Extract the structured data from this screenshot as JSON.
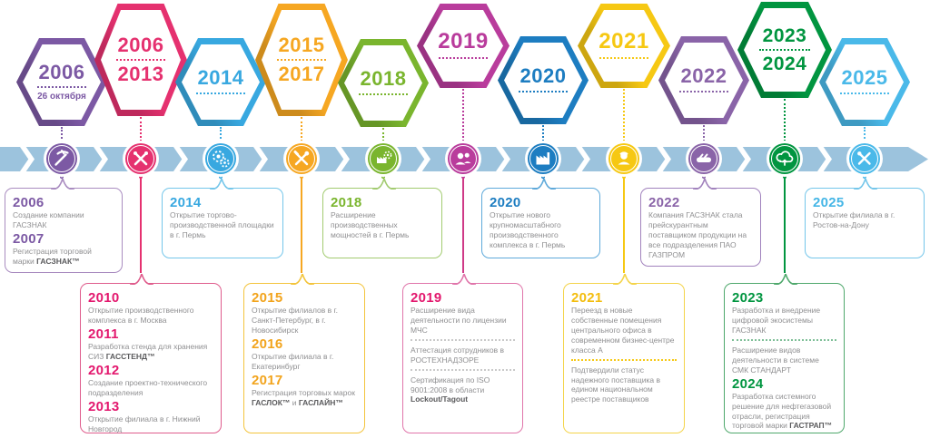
{
  "timeline": {
    "band_color": "#9cc3dd",
    "sections": [
      {
        "years": [
          "2006"
        ],
        "subtitle": "26 октября",
        "color": "#7c59a4",
        "icon": "hammer-pick-icon"
      },
      {
        "years": [
          "2006",
          "2013"
        ],
        "color": "#e5316f",
        "icon": "crossed-tools-icon"
      },
      {
        "years": [
          "2014"
        ],
        "color": "#38a8e0",
        "icon": "gears-icon"
      },
      {
        "years": [
          "2015",
          "2017"
        ],
        "color": "#f6a722",
        "icon": "wrench-screwdriver-icon"
      },
      {
        "years": [
          "2018"
        ],
        "color": "#7ab52e",
        "icon": "factory-gears-icon"
      },
      {
        "years": [
          "2019"
        ],
        "color": "#b93c9c",
        "icon": "people-icon"
      },
      {
        "years": [
          "2020"
        ],
        "color": "#1d7dc1",
        "icon": "factory-icon"
      },
      {
        "years": [
          "2021"
        ],
        "color": "#f6c813",
        "icon": "worker-icon"
      },
      {
        "years": [
          "2022"
        ],
        "color": "#8a64a8",
        "icon": "handshake-icon"
      },
      {
        "years": [
          "2023",
          "2024"
        ],
        "color": "#019540",
        "icon": "cloud-icon"
      },
      {
        "years": [
          "2025"
        ],
        "color": "#4ab9e9",
        "icon": "wrench-hammer-icon"
      }
    ]
  },
  "top_boxes": [
    {
      "border_color": "#a98cc0",
      "accent_color": "#7c59a4",
      "items": [
        {
          "type": "year",
          "text": "2006"
        },
        {
          "type": "text",
          "segments": [
            {
              "t": "Создание компании ГАСЗНАК"
            }
          ]
        },
        {
          "type": "year",
          "text": "2007"
        },
        {
          "type": "text",
          "segments": [
            {
              "t": "Регистрация торговой марки "
            },
            {
              "t": "ГАСЗНАК™",
              "bold": true
            }
          ]
        }
      ]
    },
    {
      "border_color": "#74c6ea",
      "accent_color": "#38a8e0",
      "items": [
        {
          "type": "year",
          "text": "2014"
        },
        {
          "type": "text",
          "segments": [
            {
              "t": "Открытие торгово-производственной площадки в г. Пермь"
            }
          ]
        }
      ]
    },
    {
      "border_color": "#a2cb70",
      "accent_color": "#7ab52e",
      "items": [
        {
          "type": "year",
          "text": "2018"
        },
        {
          "type": "text",
          "segments": [
            {
              "t": "Расширение производственных мощностей в г. Пермь"
            }
          ]
        }
      ]
    },
    {
      "border_color": "#5ea9da",
      "accent_color": "#1d7dc1",
      "items": [
        {
          "type": "year",
          "text": "2020"
        },
        {
          "type": "text",
          "segments": [
            {
              "t": "Открытие нового крупномасштабного производственного комплекса в г. Пермь"
            }
          ]
        }
      ]
    },
    {
      "border_color": "#a182bd",
      "accent_color": "#8a64a8",
      "items": [
        {
          "type": "year",
          "text": "2022"
        },
        {
          "type": "text",
          "segments": [
            {
              "t": "Компания ГАСЗНАК стала прейскурантным поставщиком продукции на все подразделения ПАО ГАЗПРОМ"
            }
          ]
        }
      ]
    },
    {
      "border_color": "#74c6ea",
      "accent_color": "#45b6e6",
      "items": [
        {
          "type": "year",
          "text": "2025"
        },
        {
          "type": "text",
          "segments": [
            {
              "t": "Открытие филиала в г. Ростов-на-Дону"
            }
          ]
        }
      ]
    }
  ],
  "bottom_boxes": [
    {
      "border_color": "#df5c8c",
      "accent_color": "#e3186e",
      "line_color": "#e5316f",
      "divider_color": "#c9c9c9",
      "items": [
        {
          "type": "year",
          "text": "2010"
        },
        {
          "type": "text",
          "segments": [
            {
              "t": "Открытие производственного комплекса в г. Москва"
            }
          ]
        },
        {
          "type": "year",
          "text": "2011"
        },
        {
          "type": "text",
          "segments": [
            {
              "t": "Разработка стенда для хранения СИЗ "
            },
            {
              "t": "ГАССТЕНД™",
              "bold": true
            }
          ]
        },
        {
          "type": "year",
          "text": "2012"
        },
        {
          "type": "text",
          "segments": [
            {
              "t": "Создание проектно-технического подразделения"
            }
          ]
        },
        {
          "type": "year",
          "text": "2013"
        },
        {
          "type": "text",
          "segments": [
            {
              "t": "Открытие филиала в г. Нижний Новгород"
            }
          ]
        }
      ]
    },
    {
      "border_color": "#f3c43c",
      "accent_color": "#f2a41d",
      "line_color": "#f6a722",
      "divider_color": "#c9c9c9",
      "items": [
        {
          "type": "year",
          "text": "2015"
        },
        {
          "type": "text",
          "segments": [
            {
              "t": "Открытие филиалов в г. Санкт-Петербург, в г. Новосибирск"
            }
          ]
        },
        {
          "type": "year",
          "text": "2016"
        },
        {
          "type": "text",
          "segments": [
            {
              "t": "Открытие филиала в г. Екатеринбург"
            }
          ]
        },
        {
          "type": "year",
          "text": "2017"
        },
        {
          "type": "text",
          "segments": [
            {
              "t": "Регистрация торговых марок "
            },
            {
              "t": "ГАСЛОК™",
              "bold": true
            },
            {
              "t": " и "
            },
            {
              "t": "ГАСЛАЙН™",
              "bold": true
            }
          ]
        }
      ]
    },
    {
      "border_color": "#e075aa",
      "accent_color": "#e3186e",
      "line_color": "#cf3a87",
      "divider_color": "#c9c9c9",
      "items": [
        {
          "type": "year",
          "text": "2019"
        },
        {
          "type": "text",
          "segments": [
            {
              "t": "Расширение вида деятельности по лицензии МЧС"
            }
          ]
        },
        {
          "type": "divider"
        },
        {
          "type": "text",
          "segments": [
            {
              "t": "Аттестация сотрудников в РОСТЕХНАДЗОРЕ"
            }
          ]
        },
        {
          "type": "divider"
        },
        {
          "type": "text",
          "segments": [
            {
              "t": "Сертификация по ISO 9001:2008 в области "
            },
            {
              "t": "Lockout/Tagout",
              "bold": true
            }
          ]
        }
      ]
    },
    {
      "border_color": "#f4d44a",
      "accent_color": "#f3bd0e",
      "line_color": "#f6c813",
      "divider_color": "#f6c813",
      "items": [
        {
          "type": "year",
          "text": "2021"
        },
        {
          "type": "text",
          "segments": [
            {
              "t": "Переезд в новые собственные помещения центрального офиса в современном бизнес-центре класса А"
            }
          ]
        },
        {
          "type": "divider"
        },
        {
          "type": "text",
          "segments": [
            {
              "t": "Подтвердили статус надежного поставщика в едином национальном реестре поставщиков"
            }
          ]
        }
      ]
    },
    {
      "border_color": "#4fa86c",
      "accent_color": "#019540",
      "line_color": "#019540",
      "divider_color": "#7fbf98",
      "items": [
        {
          "type": "year",
          "text": "2023"
        },
        {
          "type": "text",
          "segments": [
            {
              "t": "Разработка и внедрение цифровой экосистемы ГАСЗНАК"
            }
          ]
        },
        {
          "type": "divider"
        },
        {
          "type": "text",
          "segments": [
            {
              "t": "Расширение видов деятельности в системе СМК СТАНДАРТ"
            }
          ]
        },
        {
          "type": "year",
          "text": "2024"
        },
        {
          "type": "text",
          "segments": [
            {
              "t": "Разработка системного решение для нефтегазовой отрасли, регистрация торговой марки "
            },
            {
              "t": "ГАСТРАП™",
              "bold": true
            }
          ]
        }
      ]
    }
  ]
}
